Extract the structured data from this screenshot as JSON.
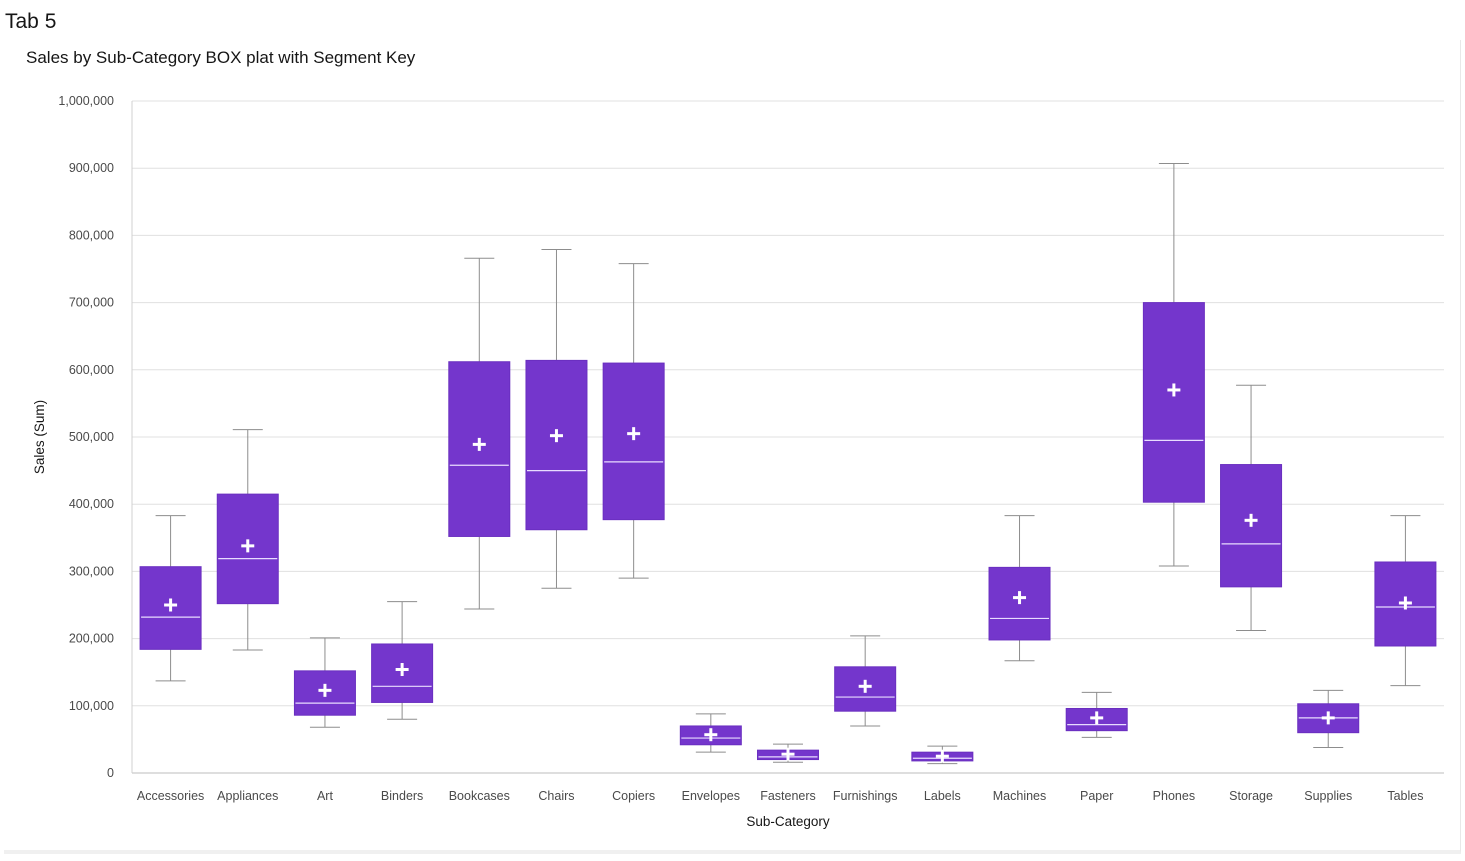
{
  "tab": {
    "title": "Tab 5"
  },
  "colors": {
    "box_fill": "#7436cc",
    "box_stroke": "#6a2fc0",
    "median": "#e8dcff",
    "mean_marker": "#ffffff",
    "whisker": "#8d8d8d",
    "grid": "#e0e0e0"
  },
  "chart_data": {
    "type": "box",
    "title": "Sales by Sub-Category BOX plat with Segment Key",
    "xlabel": "Sub-Category",
    "ylabel": "Sales (Sum)",
    "ylim": [
      0,
      1000000
    ],
    "yticks": [
      0,
      100000,
      200000,
      300000,
      400000,
      500000,
      600000,
      700000,
      800000,
      900000,
      1000000
    ],
    "ytick_labels": [
      "0",
      "100,000",
      "200,000",
      "300,000",
      "400,000",
      "500,000",
      "600,000",
      "700,000",
      "800,000",
      "900,000",
      "1,000,000"
    ],
    "grid": true,
    "categories": [
      "Accessories",
      "Appliances",
      "Art",
      "Binders",
      "Bookcases",
      "Chairs",
      "Copiers",
      "Envelopes",
      "Fasteners",
      "Furnishings",
      "Labels",
      "Machines",
      "Paper",
      "Phones",
      "Storage",
      "Supplies",
      "Tables"
    ],
    "boxes": [
      {
        "min": 137000,
        "q1": 184000,
        "median": 232000,
        "q3": 307000,
        "max": 383000,
        "mean": 250000
      },
      {
        "min": 183000,
        "q1": 252000,
        "median": 319000,
        "q3": 415000,
        "max": 511000,
        "mean": 338000
      },
      {
        "min": 68000,
        "q1": 86000,
        "median": 104000,
        "q3": 152000,
        "max": 201000,
        "mean": 123000
      },
      {
        "min": 80000,
        "q1": 105000,
        "median": 129000,
        "q3": 192000,
        "max": 255000,
        "mean": 154000
      },
      {
        "min": 244000,
        "q1": 352000,
        "median": 458000,
        "q3": 612000,
        "max": 766000,
        "mean": 489000
      },
      {
        "min": 275000,
        "q1": 362000,
        "median": 450000,
        "q3": 614000,
        "max": 779000,
        "mean": 502000
      },
      {
        "min": 290000,
        "q1": 377000,
        "median": 463000,
        "q3": 610000,
        "max": 758000,
        "mean": 505000
      },
      {
        "min": 31000,
        "q1": 42000,
        "median": 52000,
        "q3": 70000,
        "max": 88000,
        "mean": 57000
      },
      {
        "min": 16000,
        "q1": 20000,
        "median": 24000,
        "q3": 34000,
        "max": 43000,
        "mean": 28000
      },
      {
        "min": 70000,
        "q1": 92000,
        "median": 113000,
        "q3": 158000,
        "max": 204000,
        "mean": 129000
      },
      {
        "min": 14000,
        "q1": 18000,
        "median": 22000,
        "q3": 31000,
        "max": 40000,
        "mean": 25000
      },
      {
        "min": 167000,
        "q1": 198000,
        "median": 230000,
        "q3": 306000,
        "max": 383000,
        "mean": 261000
      },
      {
        "min": 53000,
        "q1": 63000,
        "median": 72000,
        "q3": 96000,
        "max": 120000,
        "mean": 82000
      },
      {
        "min": 308000,
        "q1": 403000,
        "median": 495000,
        "q3": 700000,
        "max": 907000,
        "mean": 570000
      },
      {
        "min": 212000,
        "q1": 277000,
        "median": 341000,
        "q3": 459000,
        "max": 577000,
        "mean": 376000
      },
      {
        "min": 38000,
        "q1": 60000,
        "median": 82000,
        "q3": 103000,
        "max": 123000,
        "mean": 82000
      },
      {
        "min": 130000,
        "q1": 189000,
        "median": 247000,
        "q3": 314000,
        "max": 383000,
        "mean": 253000
      }
    ]
  }
}
